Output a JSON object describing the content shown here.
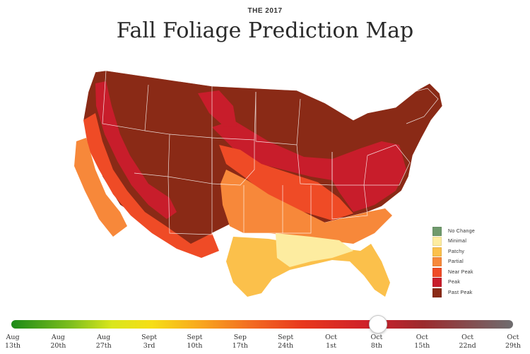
{
  "header": {
    "eyebrow": "THE 2017",
    "title": "Fall Foliage Prediction Map"
  },
  "legend": [
    {
      "label": "No Change",
      "color": "#6f9a6c"
    },
    {
      "label": "Minimal",
      "color": "#fdeca0"
    },
    {
      "label": "Patchy",
      "color": "#fbc04b"
    },
    {
      "label": "Partial",
      "color": "#f7883a"
    },
    {
      "label": "Near Peak",
      "color": "#ef4b26"
    },
    {
      "label": "Peak",
      "color": "#c81d2b"
    },
    {
      "label": "Past Peak",
      "color": "#8a2a16"
    }
  ],
  "timeline": {
    "ticks": [
      {
        "month": "Aug",
        "day": "13th"
      },
      {
        "month": "Aug",
        "day": "20th"
      },
      {
        "month": "Aug",
        "day": "27th"
      },
      {
        "month": "Sept",
        "day": "3rd"
      },
      {
        "month": "Sept",
        "day": "10th"
      },
      {
        "month": "Sep",
        "day": "17th"
      },
      {
        "month": "Sept",
        "day": "24th"
      },
      {
        "month": "Oct",
        "day": "1st"
      },
      {
        "month": "Oct",
        "day": "8th"
      },
      {
        "month": "Oct",
        "day": "15th"
      },
      {
        "month": "Oct",
        "day": "22nd"
      },
      {
        "month": "Oct",
        "day": "29th"
      }
    ],
    "selected": "Oct 8th"
  }
}
